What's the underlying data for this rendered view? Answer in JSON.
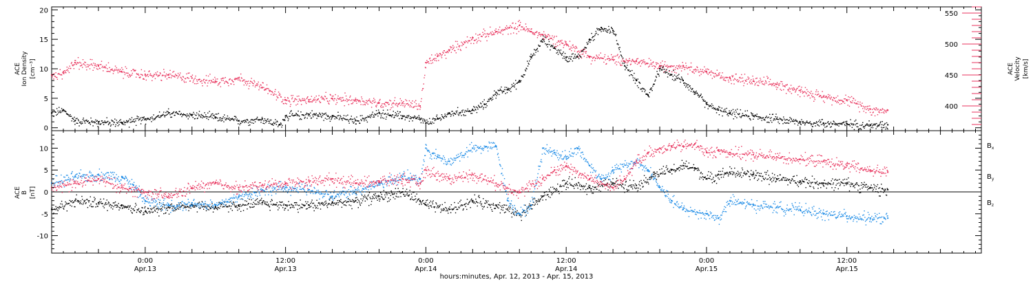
{
  "colors": {
    "black": "#000000",
    "red": "#e8325c",
    "blue": "#1a8ae6"
  },
  "x_axis": {
    "label": "hours:minutes, Apr. 12, 2013 - Apr. 15, 2013",
    "ticks": [
      {
        "t": 24,
        "time": "0:00",
        "date": "Apr.13"
      },
      {
        "t": 36,
        "time": "12:00",
        "date": "Apr.13"
      },
      {
        "t": 48,
        "time": "0:00",
        "date": "Apr.14"
      },
      {
        "t": 60,
        "time": "12:00",
        "date": "Apr.14"
      },
      {
        "t": 72,
        "time": "0:00",
        "date": "Apr.15"
      },
      {
        "t": 84,
        "time": "12:00",
        "date": "Apr.15"
      }
    ]
  },
  "chart_data": [
    {
      "type": "scatter",
      "xlim": [
        16,
        95.5
      ],
      "ylim": [
        -0.5,
        20.5
      ],
      "ylim_right": [
        360,
        560
      ],
      "yticks_left": [
        0,
        5,
        10,
        15,
        20
      ],
      "yticks_right": [
        400,
        450,
        500,
        550
      ],
      "ylabel_left": [
        "ACE",
        "Ion Density",
        "[cm⁻³]"
      ],
      "ylabel_right": [
        "ACE",
        "Velocity",
        "[km/s]"
      ],
      "series": [
        {
          "color": "black",
          "axis": "left",
          "points": [
            [
              16,
              2.5
            ],
            [
              17,
              3
            ],
            [
              18,
              1.2
            ],
            [
              20,
              1
            ],
            [
              22,
              0.9
            ],
            [
              24,
              1.5
            ],
            [
              26,
              2.5
            ],
            [
              28,
              2.2
            ],
            [
              30,
              1.8
            ],
            [
              32,
              1.2
            ],
            [
              34,
              1.5
            ],
            [
              35.5,
              0.5
            ],
            [
              36,
              2
            ],
            [
              38,
              2.3
            ],
            [
              40,
              2
            ],
            [
              42,
              1.2
            ],
            [
              44,
              2.5
            ],
            [
              46,
              2
            ],
            [
              47.5,
              1.5
            ],
            [
              48,
              0.8
            ],
            [
              49,
              1.5
            ],
            [
              50,
              2.5
            ],
            [
              52,
              3
            ],
            [
              53,
              4
            ],
            [
              54,
              6
            ],
            [
              55,
              6.5
            ],
            [
              56,
              8
            ],
            [
              57,
              12
            ],
            [
              58,
              15
            ],
            [
              59,
              13.5
            ],
            [
              60,
              12
            ],
            [
              61,
              12
            ],
            [
              62,
              15
            ],
            [
              63,
              17
            ],
            [
              64,
              16.5
            ],
            [
              65,
              10.5
            ],
            [
              66,
              8
            ],
            [
              67,
              5.5
            ],
            [
              68,
              10
            ],
            [
              69,
              9
            ],
            [
              70,
              8
            ],
            [
              71,
              6
            ],
            [
              72,
              4
            ],
            [
              73,
              3
            ],
            [
              74,
              2.5
            ],
            [
              76,
              2
            ],
            [
              78,
              1.5
            ],
            [
              80,
              1
            ],
            [
              82,
              0.8
            ],
            [
              84,
              0.7
            ],
            [
              86,
              0.5
            ],
            [
              87.5,
              0.5
            ]
          ]
        },
        {
          "color": "red",
          "axis": "right",
          "points": [
            [
              16,
              450
            ],
            [
              17,
              455
            ],
            [
              18,
              470
            ],
            [
              20,
              465
            ],
            [
              22,
              455
            ],
            [
              24,
              450
            ],
            [
              26,
              450
            ],
            [
              28,
              445
            ],
            [
              30,
              440
            ],
            [
              32,
              445
            ],
            [
              34,
              430
            ],
            [
              36,
              410
            ],
            [
              38,
              410
            ],
            [
              40,
              412
            ],
            [
              42,
              410
            ],
            [
              44,
              405
            ],
            [
              46,
              405
            ],
            [
              47.5,
              400
            ],
            [
              48,
              470
            ],
            [
              49,
              480
            ],
            [
              50,
              490
            ],
            [
              52,
              510
            ],
            [
              54,
              520
            ],
            [
              56,
              530
            ],
            [
              57,
              520
            ],
            [
              58,
              515
            ],
            [
              60,
              500
            ],
            [
              62,
              480
            ],
            [
              64,
              475
            ],
            [
              66,
              472
            ],
            [
              68,
              465
            ],
            [
              70,
              465
            ],
            [
              72,
              455
            ],
            [
              74,
              445
            ],
            [
              76,
              440
            ],
            [
              78,
              435
            ],
            [
              80,
              425
            ],
            [
              82,
              415
            ],
            [
              84,
              410
            ],
            [
              86,
              395
            ],
            [
              87.5,
              393
            ]
          ]
        }
      ]
    },
    {
      "type": "scatter",
      "xlim": [
        16,
        95.5
      ],
      "ylim": [
        -14,
        14
      ],
      "yticks_left": [
        -10,
        -5,
        0,
        5,
        10
      ],
      "ylabel_left": [
        "ACE",
        "B",
        "[nT]"
      ],
      "zero_line": true,
      "legend": {
        "placement": "right",
        "entries": [
          {
            "label": "Bx",
            "color": "black"
          },
          {
            "label": "By",
            "color": "blue"
          },
          {
            "label": "Bz",
            "color": "red"
          }
        ]
      },
      "series": [
        {
          "name": "Bx",
          "color": "black",
          "points": [
            [
              16,
              -4
            ],
            [
              18,
              -2
            ],
            [
              20,
              -2.5
            ],
            [
              22,
              -3
            ],
            [
              24,
              -4.5
            ],
            [
              26,
              -3.5
            ],
            [
              28,
              -3
            ],
            [
              30,
              -3.5
            ],
            [
              32,
              -3
            ],
            [
              34,
              -2.5
            ],
            [
              36,
              -3
            ],
            [
              38,
              -3
            ],
            [
              40,
              -2.5
            ],
            [
              42,
              -2
            ],
            [
              44,
              -1
            ],
            [
              46,
              0
            ],
            [
              47.5,
              -2
            ],
            [
              48,
              -3
            ],
            [
              50,
              -4
            ],
            [
              52,
              -2
            ],
            [
              54,
              -3
            ],
            [
              56,
              -5
            ],
            [
              57,
              -3
            ],
            [
              58,
              -1
            ],
            [
              60,
              2
            ],
            [
              62,
              1
            ],
            [
              64,
              2
            ],
            [
              66,
              1.5
            ],
            [
              67.5,
              4
            ],
            [
              69,
              5
            ],
            [
              70,
              6
            ],
            [
              71,
              5.5
            ],
            [
              72,
              3
            ],
            [
              73,
              4
            ],
            [
              74,
              4.5
            ],
            [
              76,
              4
            ],
            [
              78,
              3
            ],
            [
              80,
              2.5
            ],
            [
              82,
              2
            ],
            [
              84,
              2
            ],
            [
              86,
              1
            ],
            [
              87.5,
              0.5
            ]
          ]
        },
        {
          "name": "By",
          "color": "blue",
          "points": [
            [
              16,
              2
            ],
            [
              18,
              3.5
            ],
            [
              20,
              4
            ],
            [
              22,
              3.5
            ],
            [
              23,
              1.5
            ],
            [
              24,
              -2
            ],
            [
              26,
              -3
            ],
            [
              28,
              -2.5
            ],
            [
              30,
              -3
            ],
            [
              32,
              -1
            ],
            [
              34,
              0.5
            ],
            [
              36,
              1
            ],
            [
              38,
              0.5
            ],
            [
              40,
              -1
            ],
            [
              42,
              0.5
            ],
            [
              44,
              2
            ],
            [
              46,
              3.5
            ],
            [
              47.5,
              3
            ],
            [
              48,
              10
            ],
            [
              49,
              8
            ],
            [
              50,
              7
            ],
            [
              52,
              10
            ],
            [
              54,
              10.5
            ],
            [
              55,
              -2
            ],
            [
              56,
              -5
            ],
            [
              57,
              -3
            ],
            [
              58,
              10
            ],
            [
              59,
              9
            ],
            [
              60,
              8
            ],
            [
              61,
              10
            ],
            [
              62,
              6
            ],
            [
              63,
              3
            ],
            [
              64,
              5
            ],
            [
              66,
              7
            ],
            [
              67,
              5
            ],
            [
              68,
              1
            ],
            [
              69,
              -2
            ],
            [
              70,
              -4
            ],
            [
              72,
              -5
            ],
            [
              73,
              -6
            ],
            [
              74,
              -2
            ],
            [
              76,
              -3
            ],
            [
              78,
              -3.5
            ],
            [
              80,
              -4
            ],
            [
              82,
              -5
            ],
            [
              84,
              -5.5
            ],
            [
              86,
              -6
            ],
            [
              87.5,
              -6
            ]
          ]
        },
        {
          "name": "Bz",
          "color": "red",
          "points": [
            [
              16,
              1
            ],
            [
              18,
              2
            ],
            [
              20,
              3
            ],
            [
              22,
              1
            ],
            [
              24,
              0
            ],
            [
              26,
              -1
            ],
            [
              28,
              1
            ],
            [
              30,
              2
            ],
            [
              32,
              1
            ],
            [
              34,
              1.5
            ],
            [
              36,
              2
            ],
            [
              38,
              2.5
            ],
            [
              40,
              3
            ],
            [
              42,
              2
            ],
            [
              44,
              2.5
            ],
            [
              46,
              3
            ],
            [
              47.5,
              2
            ],
            [
              48,
              5
            ],
            [
              50,
              3
            ],
            [
              52,
              4
            ],
            [
              54,
              2
            ],
            [
              56,
              0
            ],
            [
              58,
              3
            ],
            [
              59,
              5
            ],
            [
              60,
              6
            ],
            [
              62,
              3
            ],
            [
              64,
              1
            ],
            [
              65,
              3
            ],
            [
              66,
              7
            ],
            [
              67,
              9
            ],
            [
              68,
              10
            ],
            [
              69,
              10.5
            ],
            [
              70,
              10.5
            ],
            [
              71,
              11
            ],
            [
              72,
              9
            ],
            [
              73,
              9.5
            ],
            [
              74,
              9
            ],
            [
              76,
              8.5
            ],
            [
              78,
              8
            ],
            [
              80,
              7.5
            ],
            [
              82,
              7
            ],
            [
              84,
              6
            ],
            [
              86,
              5
            ],
            [
              87.5,
              4.5
            ]
          ]
        }
      ]
    }
  ]
}
